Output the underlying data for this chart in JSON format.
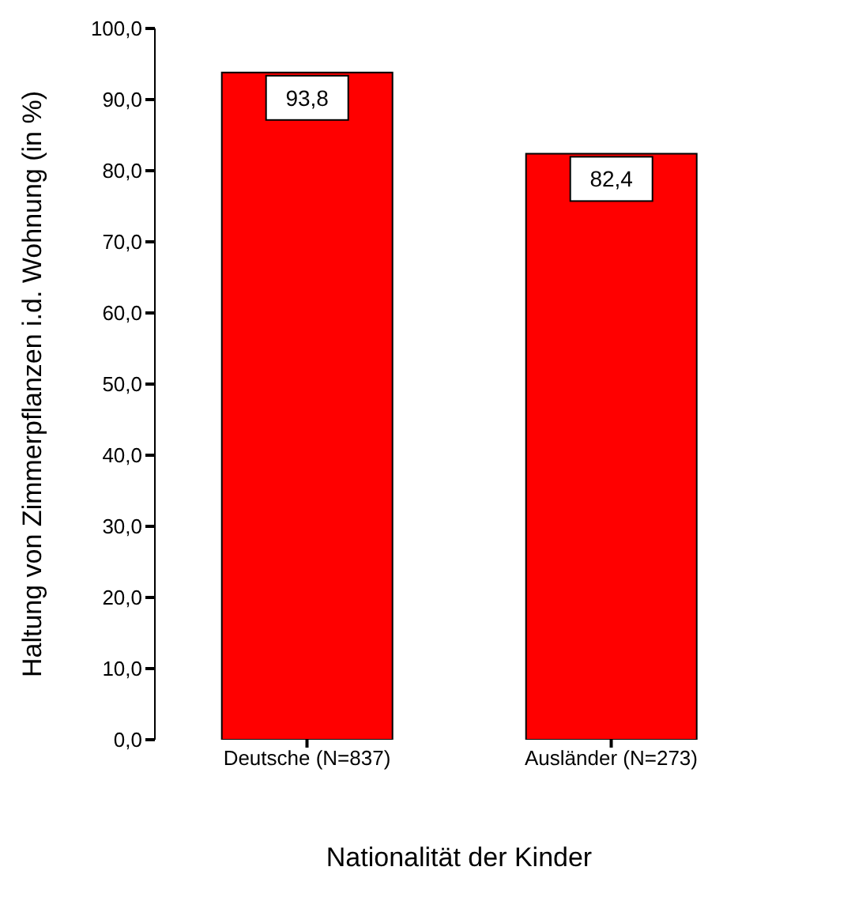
{
  "chart_data": {
    "type": "bar",
    "xlabel": "Nationalität der Kinder",
    "ylabel": "Haltung von Zimmerpflanzen i.d. Wohnung (in %)",
    "categories": [
      "Deutsche (N=837)",
      "Ausländer (N=273)"
    ],
    "values": [
      93.8,
      82.4
    ],
    "value_labels": [
      "93,8",
      "82,4"
    ],
    "color": "#ff0000",
    "ylim": [
      0,
      100
    ],
    "yticks": [
      {
        "value": 0,
        "label": "0,0"
      },
      {
        "value": 10,
        "label": "10,0"
      },
      {
        "value": 20,
        "label": "20,0"
      },
      {
        "value": 30,
        "label": "30,0"
      },
      {
        "value": 40,
        "label": "40,0"
      },
      {
        "value": 50,
        "label": "50,0"
      },
      {
        "value": 60,
        "label": "60,0"
      },
      {
        "value": 70,
        "label": "70,0"
      },
      {
        "value": 80,
        "label": "80,0"
      },
      {
        "value": 90,
        "label": "90,0"
      },
      {
        "value": 100,
        "label": "100,0"
      }
    ],
    "grid": false,
    "legend": false
  }
}
